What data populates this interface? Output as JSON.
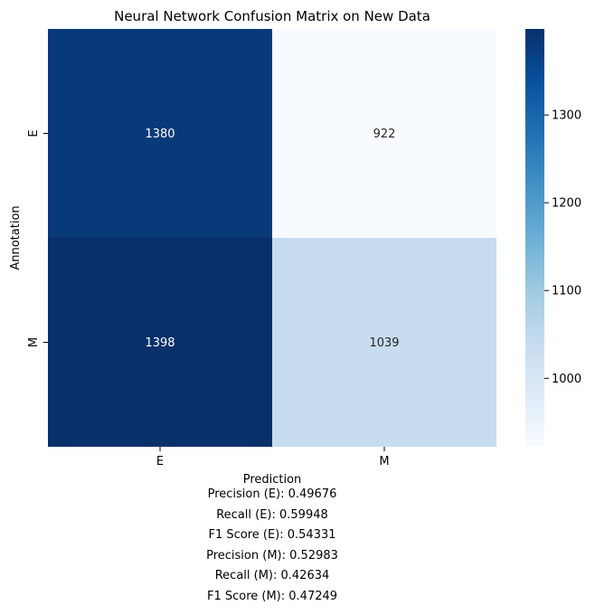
{
  "chart_data": {
    "type": "heatmap",
    "title": "Neural Network Confusion Matrix on New Data",
    "xlabel": "Prediction",
    "ylabel": "Annotation",
    "x_categories": [
      "E",
      "M"
    ],
    "y_categories": [
      "E",
      "M"
    ],
    "values": [
      [
        1380,
        922
      ],
      [
        1398,
        1039
      ]
    ],
    "colormap": "Blues",
    "color_range": [
      922,
      1398
    ],
    "colorbar_ticks": [
      1000,
      1100,
      1200,
      1300
    ]
  },
  "metrics": [
    "Precision (E): 0.49676",
    "Recall (E): 0.59948",
    "F1 Score (E): 0.54331",
    "Precision (M): 0.52983",
    "Recall (M): 0.42634",
    "F1 Score (M): 0.47249"
  ]
}
